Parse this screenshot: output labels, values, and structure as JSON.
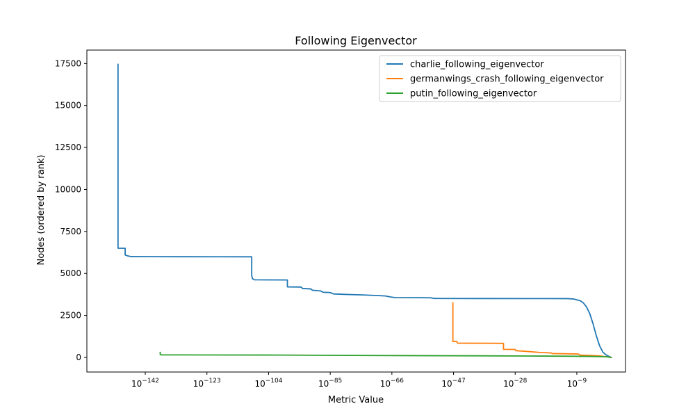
{
  "chart_data": {
    "type": "line",
    "title": "Following Eigenvector",
    "xlabel": "Metric Value",
    "ylabel": "Nodes (ordered by rank)",
    "x_scale": "log",
    "xlim_log10": [
      -160,
      6
    ],
    "ylim": [
      -870,
      18300
    ],
    "x_ticks_log10": [
      -142,
      -123,
      -104,
      -85,
      -66,
      -47,
      -28,
      -9
    ],
    "x_tick_labels": [
      {
        "base": "10",
        "exp": "−142"
      },
      {
        "base": "10",
        "exp": "−123"
      },
      {
        "base": "10",
        "exp": "−104"
      },
      {
        "base": "10",
        "exp": "−85"
      },
      {
        "base": "10",
        "exp": "−66"
      },
      {
        "base": "10",
        "exp": "−47"
      },
      {
        "base": "10",
        "exp": "−28"
      },
      {
        "base": "10",
        "exp": "−9"
      }
    ],
    "y_ticks": [
      0,
      2500,
      5000,
      7500,
      10000,
      12500,
      15000,
      17500
    ],
    "y_tick_labels": [
      "0",
      "2500",
      "5000",
      "7500",
      "10000",
      "12500",
      "15000",
      "17500"
    ],
    "grid": false,
    "legend_position": "top-right",
    "series": [
      {
        "name": "charlie_following_eigenvector",
        "color": "#1f77b4",
        "points_log10x": [
          [
            -150.4,
            17450
          ],
          [
            -150.4,
            6500
          ],
          [
            -148.2,
            6500
          ],
          [
            -148.2,
            6100
          ],
          [
            -147.5,
            6050
          ],
          [
            -146.3,
            6000
          ],
          [
            -140,
            5998
          ],
          [
            -130,
            5995
          ],
          [
            -120,
            5993
          ],
          [
            -109.2,
            5990
          ],
          [
            -109.2,
            4900
          ],
          [
            -109.0,
            4700
          ],
          [
            -108.4,
            4620
          ],
          [
            -105,
            4615
          ],
          [
            -98.2,
            4610
          ],
          [
            -98.2,
            4200
          ],
          [
            -94,
            4190
          ],
          [
            -93.5,
            4100
          ],
          [
            -91,
            4080
          ],
          [
            -90.5,
            4000
          ],
          [
            -88,
            3960
          ],
          [
            -87.2,
            3880
          ],
          [
            -85,
            3860
          ],
          [
            -84,
            3780
          ],
          [
            -80,
            3750
          ],
          [
            -75,
            3720
          ],
          [
            -70,
            3680
          ],
          [
            -68,
            3660
          ],
          [
            -66.5,
            3600
          ],
          [
            -65,
            3560
          ],
          [
            -58,
            3555
          ],
          [
            -54,
            3550
          ],
          [
            -53,
            3510
          ],
          [
            -40,
            3505
          ],
          [
            -20,
            3503
          ],
          [
            -12,
            3500
          ],
          [
            -10,
            3480
          ],
          [
            -8,
            3380
          ],
          [
            -7,
            3250
          ],
          [
            -6,
            3000
          ],
          [
            -5,
            2600
          ],
          [
            -4,
            2000
          ],
          [
            -3,
            1300
          ],
          [
            -2,
            700
          ],
          [
            -1,
            320
          ],
          [
            0,
            150
          ],
          [
            1,
            50
          ],
          [
            1.6,
            0
          ]
        ]
      },
      {
        "name": "germanwings_crash_following_eigenvector",
        "color": "#ff7f0e",
        "points_log10x": [
          [
            -47.2,
            3250
          ],
          [
            -47.2,
            950
          ],
          [
            -46,
            950
          ],
          [
            -45.8,
            850
          ],
          [
            -43,
            845
          ],
          [
            -35,
            840
          ],
          [
            -31.6,
            835
          ],
          [
            -31.6,
            480
          ],
          [
            -28,
            475
          ],
          [
            -27.8,
            400
          ],
          [
            -24,
            350
          ],
          [
            -20,
            290
          ],
          [
            -17,
            270
          ],
          [
            -16.5,
            230
          ],
          [
            -10,
            210
          ],
          [
            -8.5,
            200
          ],
          [
            -8,
            140
          ],
          [
            -5,
            120
          ],
          [
            -2,
            90
          ],
          [
            0,
            40
          ],
          [
            1.6,
            0
          ]
        ]
      },
      {
        "name": "putin_following_eigenvector",
        "color": "#2ca02c",
        "points_log10x": [
          [
            -137.4,
            300
          ],
          [
            -137.4,
            170
          ],
          [
            -137,
            150
          ],
          [
            -120,
            145
          ],
          [
            -100,
            140
          ],
          [
            -80,
            120
          ],
          [
            -60,
            105
          ],
          [
            -40,
            95
          ],
          [
            -20,
            80
          ],
          [
            -10,
            70
          ],
          [
            -5,
            60
          ],
          [
            0,
            40
          ],
          [
            1.6,
            0
          ]
        ]
      }
    ]
  }
}
